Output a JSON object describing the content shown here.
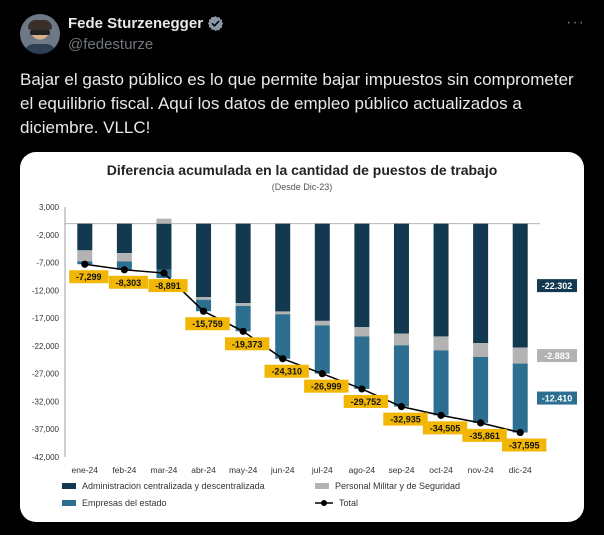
{
  "user": {
    "name": "Fede Sturzenegger",
    "handle": "@fedesturze",
    "more_label": "···"
  },
  "tweet": {
    "text": "Bajar el gasto público es lo que permite bajar impuestos sin comprometer el equilibrio fiscal. Aquí los datos de empleo público actualizados a diciembre. VLLC!"
  },
  "colors": {
    "admin": "#12394f",
    "militar": "#b3b3b3",
    "empresas": "#2d6f91",
    "total": "#000000",
    "label_bg": "#f2b705",
    "verified": "#8b98a5"
  },
  "chart_data": {
    "type": "bar",
    "title": "Diferencia acumulada en la cantidad de puestos de trabajo",
    "subtitle": "(Desde Dic-23)",
    "categories": [
      "ene-24",
      "feb-24",
      "mar-24",
      "abr-24",
      "may-24",
      "jun-24",
      "jul-24",
      "ago-24",
      "sep-24",
      "oct-24",
      "nov-24",
      "dic-24"
    ],
    "y_ticks": [
      "3,000",
      "-2,000",
      "-7,000",
      "-12,000",
      "-17,000",
      "-22,000",
      "-27,000",
      "-32,000",
      "-37,000",
      "-42,000"
    ],
    "ylim": [
      -42000,
      3000
    ],
    "stacked": true,
    "series": [
      {
        "name": "Administracion centralizada y descentralizada",
        "values": [
          -4800,
          -5300,
          -8300,
          -13200,
          -14300,
          -15800,
          -17500,
          -18600,
          -19800,
          -20300,
          -21500,
          -22302
        ]
      },
      {
        "name": "Personal Militar y de Seguridad",
        "values": [
          -2000,
          -1500,
          900,
          -500,
          -500,
          -500,
          -800,
          -1700,
          -2100,
          -2500,
          -2500,
          -2883
        ]
      },
      {
        "name": "Empresas del estado",
        "values": [
          -500,
          -1500,
          -1491,
          -2059,
          -4573,
          -8010,
          -8699,
          -9452,
          -11035,
          -11705,
          -11861,
          -12410
        ]
      }
    ],
    "total": {
      "name": "Total",
      "values": [
        -7299,
        -8303,
        -8891,
        -15759,
        -19373,
        -24310,
        -26999,
        -29752,
        -32935,
        -34505,
        -35861,
        -37595
      ]
    },
    "total_labels": [
      "-7,299",
      "-8,303",
      "-8,891",
      "-15,759",
      "-19,373",
      "-24,310",
      "-26,999",
      "-29,752",
      "-32,935",
      "-34,505",
      "-35,861",
      "-37,595"
    ],
    "end_labels": [
      "-22.302",
      "-2.883",
      "-12.410"
    ],
    "legend": [
      "Administracion centralizada y descentralizada",
      "Personal Militar y de Seguridad",
      "Empresas del estado",
      "Total"
    ],
    "legend_position": "bottom",
    "grid": false
  }
}
